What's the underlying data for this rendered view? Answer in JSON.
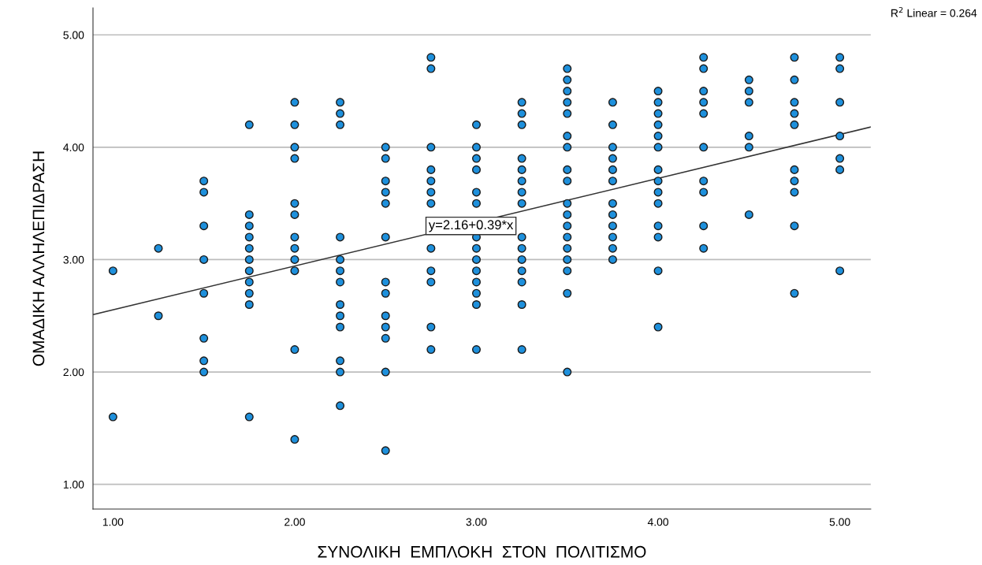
{
  "chart_data": {
    "type": "scatter",
    "xlabel": "ΣΥΝΟΛΙΚΗ  ΕΜΠΛΟΚΗ  ΣΤΟΝ  ΠΟΛΙΤΙΣΜΟ",
    "ylabel": "ΟΜΑΔΙΚΗ ΑΛΛΗΛΕΠΙΔΡΑΣΗ",
    "xlim": [
      0.89,
      5.17
    ],
    "ylim": [
      0.78,
      5.24
    ],
    "xticks": [
      {
        "value": 1,
        "label": "1.00"
      },
      {
        "value": 2,
        "label": "2.00"
      },
      {
        "value": 3,
        "label": "3.00"
      },
      {
        "value": 4,
        "label": "4.00"
      },
      {
        "value": 5,
        "label": "5.00"
      }
    ],
    "yticks": [
      {
        "value": 1,
        "label": "1.00"
      },
      {
        "value": 2,
        "label": "2.00"
      },
      {
        "value": 3,
        "label": "3.00"
      },
      {
        "value": 4,
        "label": "4.00"
      },
      {
        "value": 5,
        "label": "5.00"
      }
    ],
    "grid": "y",
    "series": [
      {
        "color": "#1e90dc",
        "marker": "circle",
        "x": [
          1,
          1,
          1.25,
          1.25,
          1.5,
          1.5,
          1.5,
          1.5,
          1.5,
          1.5,
          1.5,
          1.5,
          1.75,
          1.75,
          1.75,
          1.75,
          1.75,
          1.75,
          1.75,
          1.75,
          1.75,
          1.75,
          1.75,
          2,
          2,
          2,
          2,
          2,
          2,
          2,
          2,
          2,
          2,
          2,
          2,
          2.25,
          2.25,
          2.25,
          2.25,
          2.25,
          2.25,
          2.25,
          2.25,
          2.25,
          2.25,
          2.25,
          2.25,
          2.25,
          2.5,
          2.5,
          2.5,
          2.5,
          2.5,
          2.5,
          2.5,
          2.5,
          2.5,
          2.5,
          2.5,
          2.5,
          2.5,
          2.75,
          2.75,
          2.75,
          2.75,
          2.75,
          2.75,
          2.75,
          2.75,
          2.75,
          2.75,
          2.75,
          2.75,
          3,
          3,
          3,
          3,
          3,
          3,
          3,
          3,
          3,
          3,
          3,
          3,
          3,
          3,
          3.25,
          3.25,
          3.25,
          3.25,
          3.25,
          3.25,
          3.25,
          3.25,
          3.25,
          3.25,
          3.25,
          3.25,
          3.25,
          3.25,
          3.25,
          3.5,
          3.5,
          3.5,
          3.5,
          3.5,
          3.5,
          3.5,
          3.5,
          3.5,
          3.5,
          3.5,
          3.5,
          3.5,
          3.5,
          3.5,
          3.5,
          3.5,
          3.5,
          3.75,
          3.75,
          3.75,
          3.75,
          3.75,
          3.75,
          3.75,
          3.75,
          3.75,
          3.75,
          3.75,
          3.75,
          4,
          4,
          4,
          4,
          4,
          4,
          4,
          4,
          4,
          4,
          4,
          4,
          4,
          4,
          4.25,
          4.25,
          4.25,
          4.25,
          4.25,
          4.25,
          4.25,
          4.25,
          4.25,
          4.25,
          4.5,
          4.5,
          4.5,
          4.5,
          4.5,
          4.5,
          4.75,
          4.75,
          4.75,
          4.75,
          4.75,
          4.75,
          4.75,
          4.75,
          4.75,
          4.75,
          5,
          5,
          5,
          5,
          5,
          5,
          5
        ],
        "values": [
          2.9,
          1.6,
          3.1,
          2.5,
          3.7,
          3.6,
          3.3,
          3.0,
          2.7,
          2.3,
          2.1,
          2.0,
          4.2,
          3.4,
          3.3,
          3.2,
          3.1,
          3.0,
          2.9,
          2.8,
          2.7,
          2.6,
          1.6,
          4.4,
          4.2,
          4.0,
          3.9,
          3.5,
          3.4,
          3.2,
          3.1,
          3.0,
          2.9,
          2.2,
          1.4,
          4.4,
          4.3,
          4.2,
          3.2,
          3.0,
          2.9,
          2.8,
          2.6,
          2.5,
          2.4,
          2.1,
          2.0,
          1.7,
          4.0,
          3.9,
          3.7,
          3.6,
          3.5,
          3.2,
          2.8,
          2.7,
          2.5,
          2.4,
          2.3,
          2.0,
          1.3,
          4.8,
          4.7,
          4.0,
          3.8,
          3.7,
          3.6,
          3.5,
          3.1,
          2.9,
          2.8,
          2.4,
          2.2,
          4.2,
          4.0,
          3.9,
          3.8,
          3.6,
          3.5,
          3.2,
          3.1,
          3.0,
          2.9,
          2.8,
          2.7,
          2.6,
          2.2,
          4.4,
          4.3,
          4.2,
          3.9,
          3.8,
          3.7,
          3.6,
          3.5,
          3.2,
          3.1,
          3.0,
          2.9,
          2.8,
          2.6,
          2.2,
          4.7,
          4.6,
          4.5,
          4.4,
          4.3,
          4.1,
          4.0,
          3.8,
          3.7,
          3.5,
          3.4,
          3.3,
          3.2,
          3.1,
          3.0,
          2.9,
          2.7,
          2.0,
          4.4,
          4.2,
          4.0,
          3.9,
          3.8,
          3.7,
          3.5,
          3.4,
          3.3,
          3.2,
          3.1,
          3.0,
          4.5,
          4.4,
          4.3,
          4.2,
          4.1,
          4.0,
          3.8,
          3.7,
          3.6,
          3.5,
          3.3,
          3.2,
          2.9,
          2.4,
          4.8,
          4.7,
          4.5,
          4.4,
          4.3,
          4.0,
          3.7,
          3.6,
          3.3,
          3.1,
          4.6,
          4.5,
          4.4,
          4.1,
          4.0,
          3.4,
          4.8,
          4.6,
          4.4,
          4.3,
          4.2,
          3.8,
          3.7,
          3.6,
          3.3,
          2.7,
          4.8,
          4.7,
          4.4,
          4.1,
          3.9,
          3.8,
          2.9
        ]
      },
      {
        "type": "line",
        "marker": "none",
        "color": "#333333",
        "x": [
          0.89,
          5.17
        ],
        "values": [
          2.51,
          4.18
        ]
      }
    ],
    "annotations": [
      {
        "text": "y=2.16+0.39*x",
        "x": 2.97,
        "y": 3.3
      },
      "R$^{2}$ Linear = 0.264"
    ]
  }
}
